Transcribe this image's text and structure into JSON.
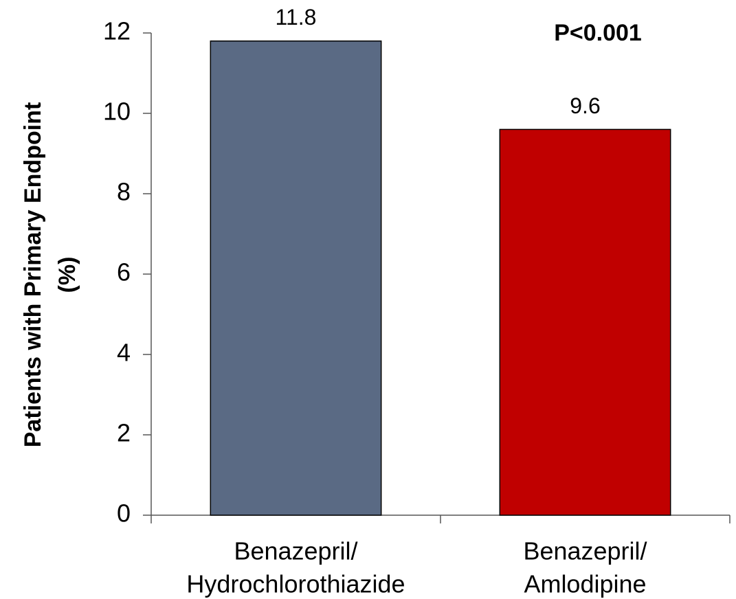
{
  "chart_data": {
    "type": "bar",
    "y_label": [
      "Patients with Primary Endpoint",
      "(%)"
    ],
    "annotation": "P<0.001",
    "categories": [
      [
        "Benazepril/",
        "Hydrochlorothiazide"
      ],
      [
        "Benazepril/",
        "Amlodipine"
      ]
    ],
    "values": [
      11.8,
      9.6
    ],
    "colors": [
      "#5a6a84",
      "#c00000"
    ],
    "ylim": [
      0,
      12
    ],
    "yticks": [
      0,
      2,
      4,
      6,
      8,
      10,
      12
    ],
    "grid": false
  }
}
